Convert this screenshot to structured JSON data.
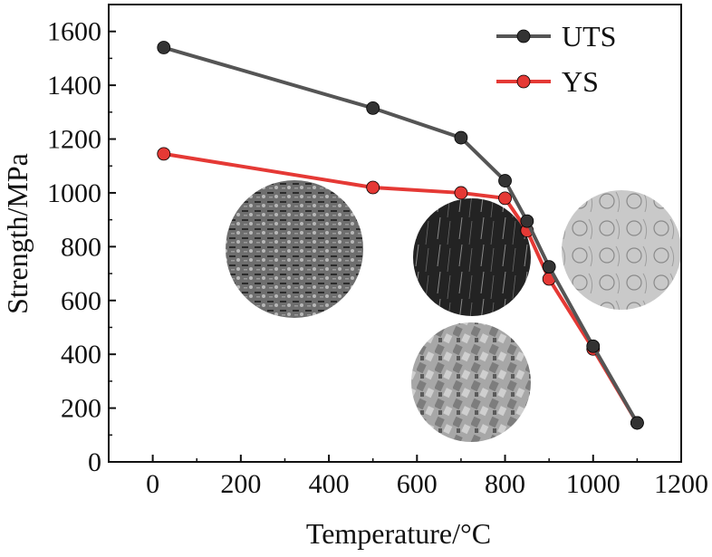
{
  "chart_data": {
    "type": "line",
    "title": "",
    "xlabel": "Temperature/°C",
    "ylabel": "Strength/MPa",
    "xlim": [
      -100,
      1200
    ],
    "ylim": [
      0,
      1700
    ],
    "xticks": [
      0,
      200,
      400,
      600,
      800,
      1000,
      1200
    ],
    "yticks": [
      0,
      200,
      400,
      600,
      800,
      1000,
      1200,
      1400,
      1600
    ],
    "grid": false,
    "legend_position": "top-right",
    "series": [
      {
        "name": "UTS",
        "color": "#555555",
        "marker_color": "#333333",
        "x": [
          25,
          500,
          700,
          800,
          850,
          900,
          1000,
          1100
        ],
        "y": [
          1540,
          1315,
          1205,
          1045,
          895,
          725,
          430,
          145
        ]
      },
      {
        "name": "YS",
        "color": "#e53935",
        "marker_color": "#e53935",
        "x": [
          25,
          500,
          700,
          800,
          850,
          900,
          1000,
          1100
        ],
        "y": [
          1145,
          1020,
          1000,
          980,
          860,
          680,
          420,
          145
        ]
      }
    ],
    "insets": [
      {
        "name": "microstructure-inset-1",
        "tone": "mixed-grey"
      },
      {
        "name": "microstructure-inset-2",
        "tone": "dark"
      },
      {
        "name": "microstructure-inset-3",
        "tone": "light-grey"
      },
      {
        "name": "microstructure-inset-4",
        "tone": "grey-grains"
      }
    ]
  }
}
